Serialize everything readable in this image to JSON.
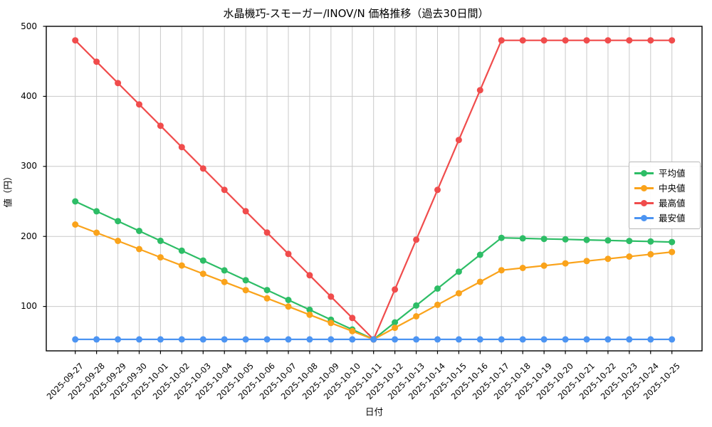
{
  "chart_data": {
    "type": "line",
    "title": "水晶機巧-スモーガー/INOV/N 価格推移（過去30日間）",
    "xlabel": "日付",
    "ylabel": "値（円）",
    "ylim": [
      36.6,
      500
    ],
    "y_ticks": [
      100,
      200,
      300,
      400,
      500
    ],
    "grid": true,
    "legend_position": "center right",
    "x_tick_rotation": 45,
    "categories": [
      "2025-09-27",
      "2025-09-28",
      "2025-09-29",
      "2025-09-30",
      "2025-10-01",
      "2025-10-02",
      "2025-10-03",
      "2025-10-04",
      "2025-10-05",
      "2025-10-06",
      "2025-10-07",
      "2025-10-08",
      "2025-10-09",
      "2025-10-10",
      "2025-10-11",
      "2025-10-12",
      "2025-10-13",
      "2025-10-14",
      "2025-10-15",
      "2025-10-16",
      "2025-10-17",
      "2025-10-18",
      "2025-10-19",
      "2025-10-20",
      "2025-10-21",
      "2025-10-22",
      "2025-10-23",
      "2025-10-24",
      "2025-10-25"
    ],
    "series": [
      {
        "name": "平均値",
        "color": "#2dbd66",
        "values": [
          250,
          235.9,
          221.9,
          207.8,
          193.7,
          179.6,
          165.6,
          151.5,
          137.4,
          123.4,
          109.3,
          95.2,
          81.1,
          67.1,
          53,
          77.2,
          101.3,
          125.5,
          149.7,
          173.8,
          198,
          197.3,
          196.5,
          195.8,
          195,
          194.3,
          193.5,
          192.8,
          192
        ]
      },
      {
        "name": "中央値",
        "color": "#faa31b",
        "values": [
          217,
          205.3,
          193.6,
          181.9,
          170.1,
          158.4,
          146.7,
          135,
          123.3,
          111.6,
          99.9,
          88.1,
          76.4,
          64.7,
          53,
          69.5,
          85.9,
          102.3,
          118.8,
          135.2,
          151.7,
          155,
          158.2,
          161.5,
          164.8,
          168,
          171.3,
          174.5,
          177.8
        ]
      },
      {
        "name": "最高値",
        "color": "#f04c4c",
        "values": [
          480,
          449.5,
          419,
          388.5,
          358,
          327.5,
          297,
          266.5,
          236,
          205.5,
          175,
          144.5,
          114,
          83.5,
          53,
          124.2,
          195.3,
          266.5,
          337.7,
          408.8,
          480,
          480,
          480,
          480,
          480,
          480,
          480,
          480,
          480
        ]
      },
      {
        "name": "最安値",
        "color": "#4c94f2",
        "values": [
          53,
          53,
          53,
          53,
          53,
          53,
          53,
          53,
          53,
          53,
          53,
          53,
          53,
          53,
          53,
          53,
          53,
          53,
          53,
          53,
          53,
          53,
          53,
          53,
          53,
          53,
          53,
          53,
          53
        ]
      }
    ],
    "grid_color": "#c9c9c9",
    "axis_color": "#000000"
  }
}
